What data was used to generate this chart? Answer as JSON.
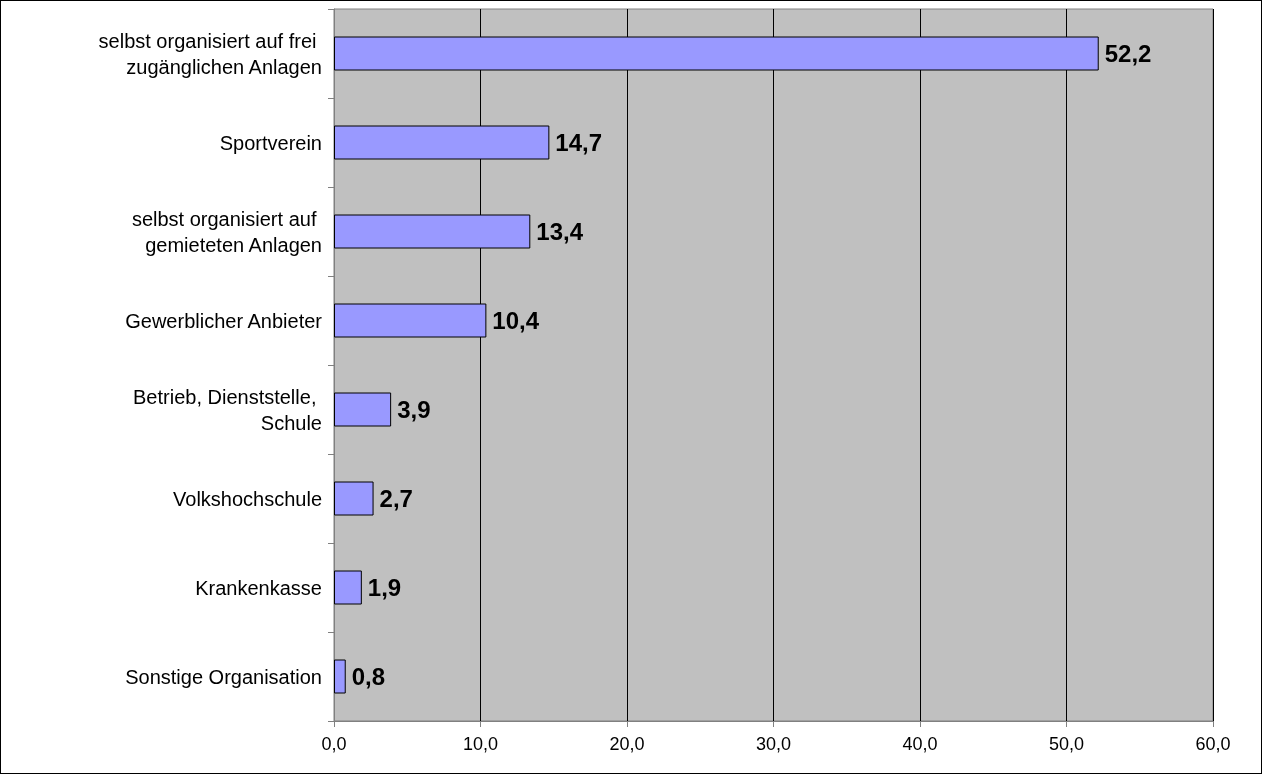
{
  "chart_data": {
    "type": "bar",
    "orientation": "horizontal",
    "categories": [
      "selbst organisiert auf frei zugänglichen Anlagen",
      "Sportverein",
      "selbst organisiert auf gemieteten Anlagen",
      "Gewerblicher Anbieter",
      "Betrieb, Dienststelle, Schule",
      "Volkshochschule",
      "Krankenkasse",
      "Sonstige Organisation"
    ],
    "values": [
      52.2,
      14.7,
      13.4,
      10.4,
      3.9,
      2.7,
      1.9,
      0.8
    ],
    "value_labels": [
      "52,2",
      "14,7",
      "13,4",
      "10,4",
      "3,9",
      "2,7",
      "1,9",
      "0,8"
    ],
    "color": "#9999ff",
    "xlim": [
      0,
      60
    ],
    "xticks": [
      {
        "value": 0,
        "label": "0,0"
      },
      {
        "value": 10,
        "label": "10,0"
      },
      {
        "value": 20,
        "label": "20,0"
      },
      {
        "value": 30,
        "label": "30,0"
      },
      {
        "value": 40,
        "label": "40,0"
      },
      {
        "value": 50,
        "label": "50,0"
      },
      {
        "value": 60,
        "label": "60,0"
      }
    ],
    "grid": "x"
  }
}
